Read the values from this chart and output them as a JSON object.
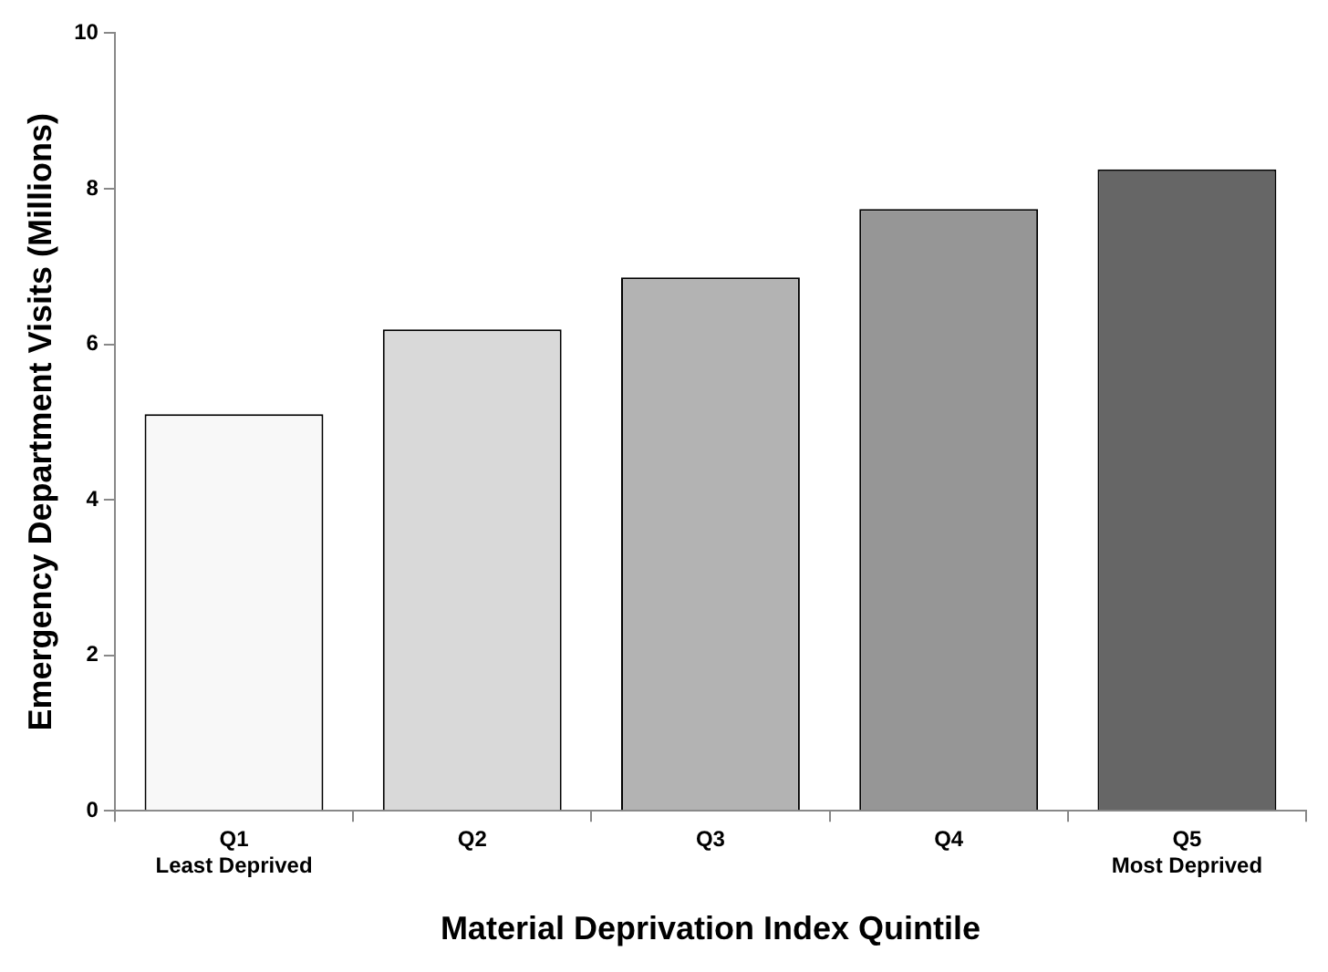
{
  "chart_data": {
    "type": "bar",
    "xlabel": "Material Deprivation Index Quintile",
    "ylabel": "Emergency Department Visits (Millions)",
    "categories": [
      "Q1\nLeast Deprived",
      "Q2",
      "Q3",
      "Q4",
      "Q5\nMost Deprived"
    ],
    "values": [
      5.1,
      6.19,
      6.86,
      7.74,
      8.25
    ],
    "colors": [
      "#f8f8f8",
      "#d9d9d9",
      "#b3b3b3",
      "#969696",
      "#666666"
    ],
    "ylim": [
      0,
      10
    ],
    "yticks": [
      0,
      2,
      4,
      6,
      8,
      10
    ],
    "grid": false,
    "legend": false
  }
}
